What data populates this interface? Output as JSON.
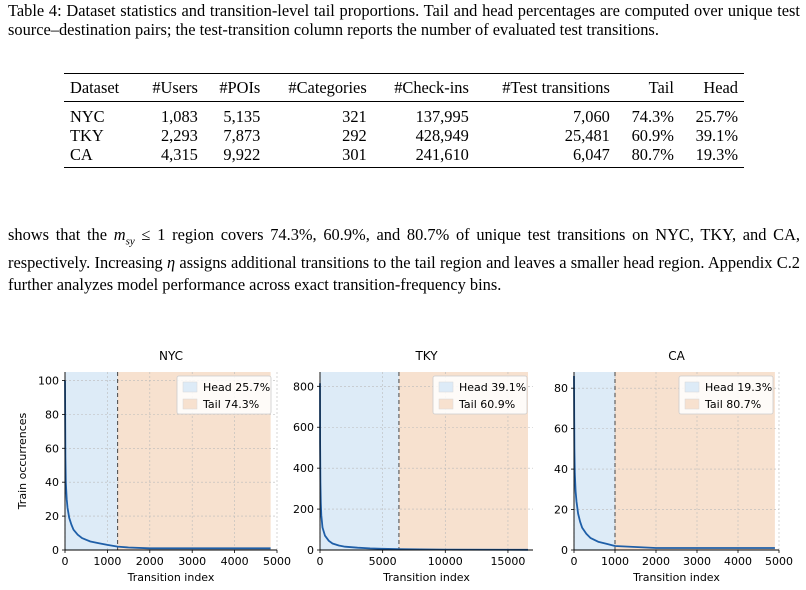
{
  "caption": {
    "text": "Table 4: Dataset statistics and transition-level tail proportions. Tail and head percentages are computed over unique test source–destination pairs; the test-transition column reports the number of evaluated test transitions."
  },
  "table": {
    "headers": [
      "Dataset",
      "#Users",
      "#POIs",
      "#Categories",
      "#Check-ins",
      "#Test transitions",
      "Tail",
      "Head"
    ],
    "rows": [
      [
        "NYC",
        "1,083",
        "5,135",
        "321",
        "137,995",
        "7,060",
        "74.3%",
        "25.7%"
      ],
      [
        "TKY",
        "2,293",
        "7,873",
        "292",
        "428,949",
        "25,481",
        "60.9%",
        "39.1%"
      ],
      [
        "CA",
        "4,315",
        "9,922",
        "301",
        "241,610",
        "6,047",
        "80.7%",
        "19.3%"
      ]
    ]
  },
  "paragraph": {
    "part1": "shows that the ",
    "math_var": "m",
    "math_sub": "sy",
    "math_rel": " ≤ 1",
    "part2": " region covers 74.3%, 60.9%, and 80.7% of unique test transitions on NYC, TKY, and CA, respectively. Increasing ",
    "eta": "η",
    "part3": " assigns additional transitions to the tail region and leaves a smaller head region. Appendix C.2 further analyzes model performance across exact transition-frequency bins."
  },
  "colors": {
    "curve": "#1f5fa8",
    "head_fill": "#ddebf7",
    "tail_fill": "#f7e1cf",
    "boundary": "#555555"
  },
  "chart_data": [
    {
      "type": "line",
      "title": "NYC",
      "xlabel": "Transition index",
      "ylabel": "Train occurrences",
      "xlim": [
        0,
        5000
      ],
      "ylim": [
        0,
        105
      ],
      "xticks": [
        0,
        1000,
        2000,
        3000,
        4000,
        5000
      ],
      "yticks": [
        0,
        20,
        40,
        60,
        80,
        100
      ],
      "head_end": 1240,
      "tail_end": 4850,
      "x": [
        0,
        5,
        10,
        20,
        40,
        60,
        100,
        150,
        200,
        300,
        400,
        500,
        600,
        800,
        1000,
        1240,
        1500,
        2000,
        3000,
        4000,
        4850
      ],
      "y": [
        100,
        75,
        55,
        40,
        30,
        25,
        19,
        15,
        12,
        9,
        7,
        6,
        5,
        4,
        3,
        2,
        1.5,
        1,
        1,
        1,
        1
      ],
      "legend": [
        {
          "label": "Head 25.7%",
          "region": "head"
        },
        {
          "label": "Tail 74.3%",
          "region": "tail"
        }
      ],
      "legend_position": "top-right",
      "grid": true
    },
    {
      "type": "line",
      "title": "TKY",
      "xlabel": "Transition index",
      "ylabel": "",
      "xlim": [
        0,
        17000
      ],
      "ylim": [
        0,
        870
      ],
      "xticks": [
        0,
        5000,
        10000,
        15000
      ],
      "yticks": [
        0,
        200,
        400,
        600,
        800
      ],
      "head_end": 6300,
      "tail_end": 16600,
      "x": [
        0,
        10,
        30,
        60,
        100,
        200,
        400,
        700,
        1000,
        1500,
        2000,
        3000,
        4000,
        5000,
        6300,
        8000,
        10000,
        16600
      ],
      "y": [
        815,
        520,
        330,
        230,
        170,
        110,
        70,
        45,
        32,
        22,
        16,
        11,
        8,
        6,
        4,
        3,
        2,
        1
      ],
      "legend": [
        {
          "label": "Head 39.1%",
          "region": "head"
        },
        {
          "label": "Tail 60.9%",
          "region": "tail"
        }
      ],
      "legend_position": "top-right",
      "grid": true
    },
    {
      "type": "line",
      "title": "CA",
      "xlabel": "Transition index",
      "ylabel": "",
      "xlim": [
        0,
        5000
      ],
      "ylim": [
        0,
        88
      ],
      "xticks": [
        0,
        1000,
        2000,
        3000,
        4000,
        5000
      ],
      "yticks": [
        0,
        20,
        40,
        60,
        80
      ],
      "head_end": 1000,
      "tail_end": 4900,
      "x": [
        0,
        5,
        10,
        20,
        40,
        60,
        100,
        150,
        200,
        300,
        400,
        500,
        600,
        800,
        1000,
        1500,
        2000,
        3000,
        4000,
        4900
      ],
      "y": [
        86,
        65,
        50,
        38,
        29,
        24,
        18,
        14,
        11,
        8,
        6,
        5,
        4,
        3,
        2,
        1.5,
        1,
        1,
        1,
        1
      ],
      "legend": [
        {
          "label": "Head 19.3%",
          "region": "head"
        },
        {
          "label": "Tail 80.7%",
          "region": "tail"
        }
      ],
      "legend_position": "top-right",
      "grid": true
    }
  ]
}
